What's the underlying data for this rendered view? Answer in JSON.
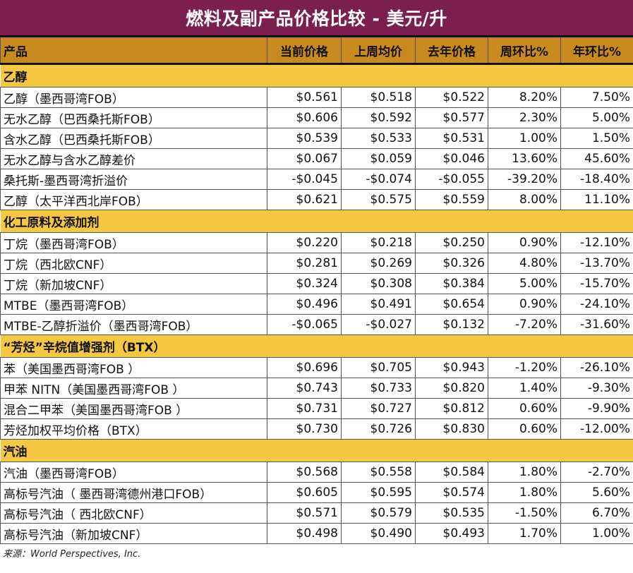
{
  "title": "燃料及副产品价格比较 - 美元/升",
  "headers": [
    "产品",
    "当前价格",
    "上周均价",
    "去年价格",
    "周环比%",
    "年环比%"
  ],
  "sections": [
    {
      "name": "乙醇",
      "rows": [
        [
          "乙醇（墨西哥湾FOB）",
          "$0.561",
          "$0.518",
          "$0.522",
          "8.20%",
          "7.50%"
        ],
        [
          "无水乙醇（巴西桑托斯FOB）",
          "$0.606",
          "$0.592",
          "$0.577",
          "2.30%",
          "5.00%"
        ],
        [
          "含水乙醇（巴西桑托斯FOB）",
          "$0.539",
          "$0.533",
          "$0.531",
          "1.00%",
          "1.50%"
        ],
        [
          "无水乙醇与含水乙醇差价",
          "$0.067",
          "$0.059",
          "$0.046",
          "13.60%",
          "45.60%"
        ],
        [
          "桑托斯-墨西哥湾折溢价",
          "-$0.045",
          "-$0.074",
          "-$0.055",
          "-39.20%",
          "-18.40%"
        ],
        [
          "乙醇（太平洋西北岸FOB）",
          "$0.621",
          "$0.575",
          "$0.559",
          "8.00%",
          "11.10%"
        ]
      ]
    },
    {
      "name": "化工原料及添加剂",
      "rows": [
        [
          "丁烷（墨西哥湾FOB）",
          "$0.220",
          "$0.218",
          "$0.250",
          "0.90%",
          "-12.10%"
        ],
        [
          "丁烷（西北欧CNF）",
          "$0.281",
          "$0.269",
          "$0.326",
          "4.80%",
          "-13.70%"
        ],
        [
          "丁烷（新加坡CNF）",
          "$0.324",
          "$0.308",
          "$0.384",
          "5.00%",
          "-15.70%"
        ],
        [
          "MTBE（墨西哥湾FOB）",
          "$0.496",
          "$0.491",
          "$0.654",
          "0.90%",
          "-24.10%"
        ],
        [
          "MTBE-乙醇折溢价（墨西哥湾FOB）",
          "-$0.065",
          "-$0.027",
          "$0.132",
          "-7.20%",
          "-31.60%"
        ]
      ]
    },
    {
      "name": "“芳烃”辛烷值增强剂（BTX）",
      "rows": [
        [
          "苯（美国墨西哥湾FOB ）",
          "$0.696",
          "$0.705",
          "$0.943",
          "-1.20%",
          "-26.10%"
        ],
        [
          "甲苯 NITN（美国墨西哥湾FOB ）",
          "$0.743",
          "$0.733",
          "$0.820",
          "1.40%",
          "-9.30%"
        ],
        [
          "混合二甲苯（美国墨西哥湾FOB ）",
          "$0.731",
          "$0.727",
          "$0.812",
          "0.60%",
          "-9.90%"
        ],
        [
          "芳烃加权平均价格（BTX）",
          "$0.730",
          "$0.726",
          "$0.830",
          "0.60%",
          "-12.00%"
        ]
      ]
    },
    {
      "name": "汽油",
      "rows": [
        [
          "汽油（墨西哥湾FOB）",
          "$0.568",
          "$0.558",
          "$0.584",
          "1.80%",
          "-2.70%"
        ],
        [
          "高标号汽油（ 墨西哥湾德州港口FOB）",
          "$0.605",
          "$0.595",
          "$0.574",
          "1.80%",
          "5.60%"
        ],
        [
          "高标号汽油（ 西北欧CNF）",
          "$0.571",
          "$0.579",
          "$0.535",
          "-1.50%",
          "6.70%"
        ],
        [
          "高标号汽油（新加坡CNF）",
          "$0.498",
          "$0.490",
          "$0.493",
          "1.70%",
          "1.00%"
        ]
      ]
    }
  ],
  "source": "来源：World Perspectives, Inc."
}
